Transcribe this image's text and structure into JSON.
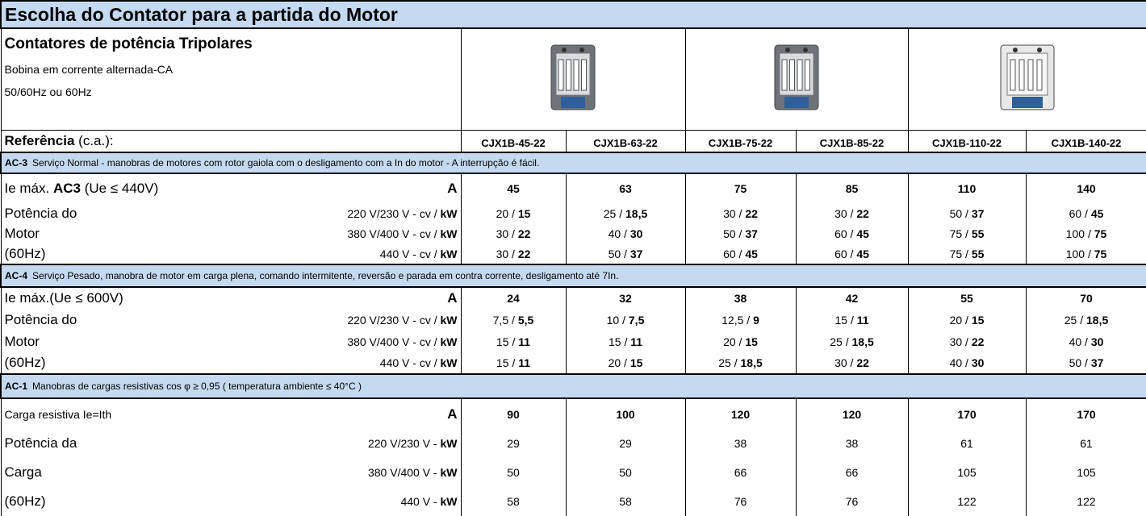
{
  "title": "Escolha do Contator para a partida do Motor",
  "header": {
    "title": "Contatores de potência Tripolares",
    "lines": [
      "Bobina em corrente alternada-CA",
      "50/60Hz ou 60Hz"
    ]
  },
  "reference": {
    "label": "Referência",
    "suffix": "(c.a.):",
    "models": [
      "CJX1B-45-22",
      "CJX1B-63-22",
      "CJX1B-75-22",
      "CJX1B-85-22",
      "CJX1B-110-22",
      "CJX1B-140-22"
    ]
  },
  "separator": "/",
  "sections": [
    {
      "code": "AC-3",
      "description": "Serviço Normal - manobras de motores com rotor gaiola com o desligamento com a In do motor - A interrupção é fácil.",
      "current": {
        "label": [
          "Ie máx. ",
          "AC3",
          " (Ue ≤ 440V)"
        ],
        "unit": "A",
        "values": [
          "45",
          "63",
          "75",
          "85",
          "110",
          "140"
        ]
      },
      "rows": [
        {
          "label": "Potência  do",
          "voltage": "220 V/230 V - cv /",
          "unit": "kW",
          "values": [
            [
              "20",
              "15"
            ],
            [
              "25",
              "18,5"
            ],
            [
              "30",
              "22"
            ],
            [
              "30",
              "22"
            ],
            [
              "50",
              "37"
            ],
            [
              "60",
              "45"
            ]
          ]
        },
        {
          "label": "Motor",
          "voltage": "380 V/400 V - cv /",
          "unit": "kW",
          "values": [
            [
              "30",
              "22"
            ],
            [
              "40",
              "30"
            ],
            [
              "50",
              "37"
            ],
            [
              "60",
              "45"
            ],
            [
              "75",
              "55"
            ],
            [
              "100",
              "75"
            ]
          ]
        },
        {
          "label": "(60Hz)",
          "voltage": "440 V - cv /",
          "unit": "kW",
          "values": [
            [
              "30",
              "22"
            ],
            [
              "50",
              "37"
            ],
            [
              "60",
              "45"
            ],
            [
              "60",
              "45"
            ],
            [
              "75",
              "55"
            ],
            [
              "100",
              "75"
            ]
          ]
        }
      ]
    },
    {
      "code": "AC-4",
      "description": "Serviço Pesado, manobra de motor em carga plena, comando intermitente, reversão e parada em contra corrente, desligamento até 7In.",
      "current": {
        "label": [
          "Ie máx.(Ue ≤ 600V)"
        ],
        "unit": "A",
        "values": [
          "24",
          "32",
          "38",
          "42",
          "55",
          "70"
        ]
      },
      "rows": [
        {
          "label": "Potência  do",
          "voltage": "220 V/230 V - cv /",
          "unit": "kW",
          "values": [
            [
              "7,5",
              "5,5"
            ],
            [
              "10",
              "7,5"
            ],
            [
              "12,5",
              "9"
            ],
            [
              "15",
              "11"
            ],
            [
              "20",
              "15"
            ],
            [
              "25",
              "18,5"
            ]
          ]
        },
        {
          "label": "Motor",
          "voltage": "380 V/400 V - cv /",
          "unit": "kW",
          "values": [
            [
              "15",
              "11"
            ],
            [
              "15",
              "11"
            ],
            [
              "20",
              "15"
            ],
            [
              "25",
              "18,5"
            ],
            [
              "30",
              "22"
            ],
            [
              "40",
              "30"
            ]
          ]
        },
        {
          "label": "(60Hz)",
          "voltage": "440 V - cv /",
          "unit": "kW",
          "values": [
            [
              "15",
              "11"
            ],
            [
              "20",
              "15"
            ],
            [
              "25",
              "18,5"
            ],
            [
              "30",
              "22"
            ],
            [
              "40",
              "30"
            ],
            [
              "50",
              "37"
            ]
          ]
        }
      ]
    },
    {
      "code": "AC-1",
      "description": "Manobras de cargas resistivas cos φ  ≥ 0,95 ( temperatura ambiente ≤ 40°C )",
      "current": {
        "label": [
          "Carga resistiva Ie=Ith"
        ],
        "unit": "A",
        "values": [
          "90",
          "100",
          "120",
          "120",
          "170",
          "170"
        ]
      },
      "rows": [
        {
          "label": "Potência da",
          "voltage": "220 V/230 V -",
          "unit": "kW",
          "values": [
            "29",
            "29",
            "38",
            "38",
            "61",
            "61"
          ]
        },
        {
          "label": "Carga",
          "voltage": "380 V/400 V -",
          "unit": "kW",
          "values": [
            "50",
            "50",
            "66",
            "66",
            "105",
            "105"
          ]
        },
        {
          "label": "(60Hz)",
          "voltage": "440 V -",
          "unit": "kW",
          "values": [
            "58",
            "58",
            "76",
            "76",
            "122",
            "122"
          ]
        }
      ]
    }
  ]
}
